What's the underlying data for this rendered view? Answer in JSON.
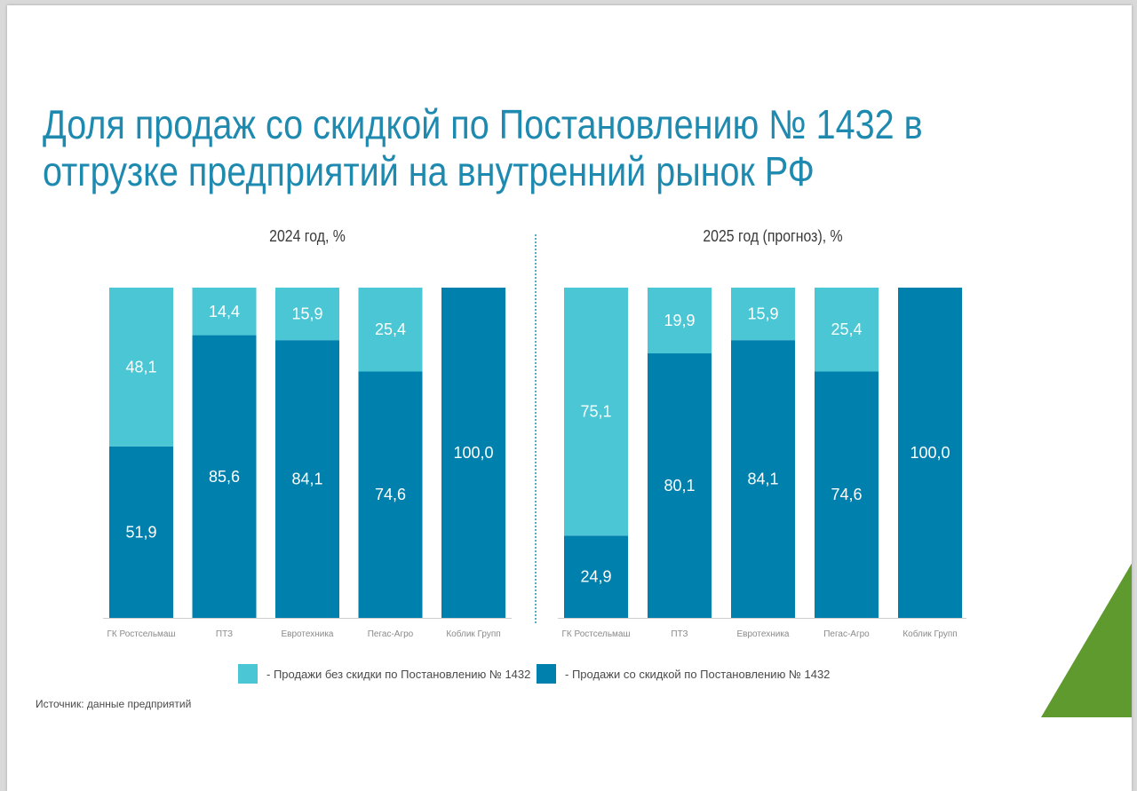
{
  "title_lines": [
    "Доля продаж со скидкой по Постановлению № 1432 в",
    "отгрузке предприятий на внутренний рынок РФ"
  ],
  "colors": {
    "title": "#1f8ab0",
    "without_discount": "#4ac6d4",
    "with_discount": "#0080ad",
    "green_corner": "#5e9a2e"
  },
  "legend": {
    "without_discount": "- Продажи без скидки по Постановлению № 1432",
    "with_discount": "- Продажи со скидкой по Постановлению № 1432"
  },
  "source": "Источник: данные предприятий",
  "chart_data": [
    {
      "type": "bar",
      "stacked": true,
      "title": "2024 год, %",
      "categories": [
        "ГК Ростсельмаш",
        "ПТЗ",
        "Евротехника",
        "Пегас-Агро",
        "Коблик Групп"
      ],
      "series": [
        {
          "name": "Продажи со скидкой по Постановлению № 1432",
          "labels": [
            "51,9",
            "85,6",
            "84,1",
            "74,6",
            "100,0"
          ],
          "values": [
            51.9,
            85.6,
            84.1,
            74.6,
            100.0
          ]
        },
        {
          "name": "Продажи без скидки по Постановлению № 1432",
          "labels": [
            "48,1",
            "14,4",
            "15,9",
            "25,4",
            ""
          ],
          "values": [
            48.1,
            14.4,
            15.9,
            25.4,
            0
          ]
        }
      ],
      "ylim": [
        0,
        100
      ]
    },
    {
      "type": "bar",
      "stacked": true,
      "title": "2025 год (прогноз), %",
      "categories": [
        "ГК Ростсельмаш",
        "ПТЗ",
        "Евротехника",
        "Пегас-Агро",
        "Коблик Групп"
      ],
      "series": [
        {
          "name": "Продажи со скидкой по Постановлению № 1432",
          "labels": [
            "24,9",
            "80,1",
            "84,1",
            "74,6",
            "100,0"
          ],
          "values": [
            24.9,
            80.1,
            84.1,
            74.6,
            100.0
          ]
        },
        {
          "name": "Продажи без скидки по Постановлению № 1432",
          "labels": [
            "75,1",
            "19,9",
            "15,9",
            "25,4",
            ""
          ],
          "values": [
            75.1,
            19.9,
            15.9,
            25.4,
            0
          ]
        }
      ],
      "ylim": [
        0,
        100
      ]
    }
  ]
}
